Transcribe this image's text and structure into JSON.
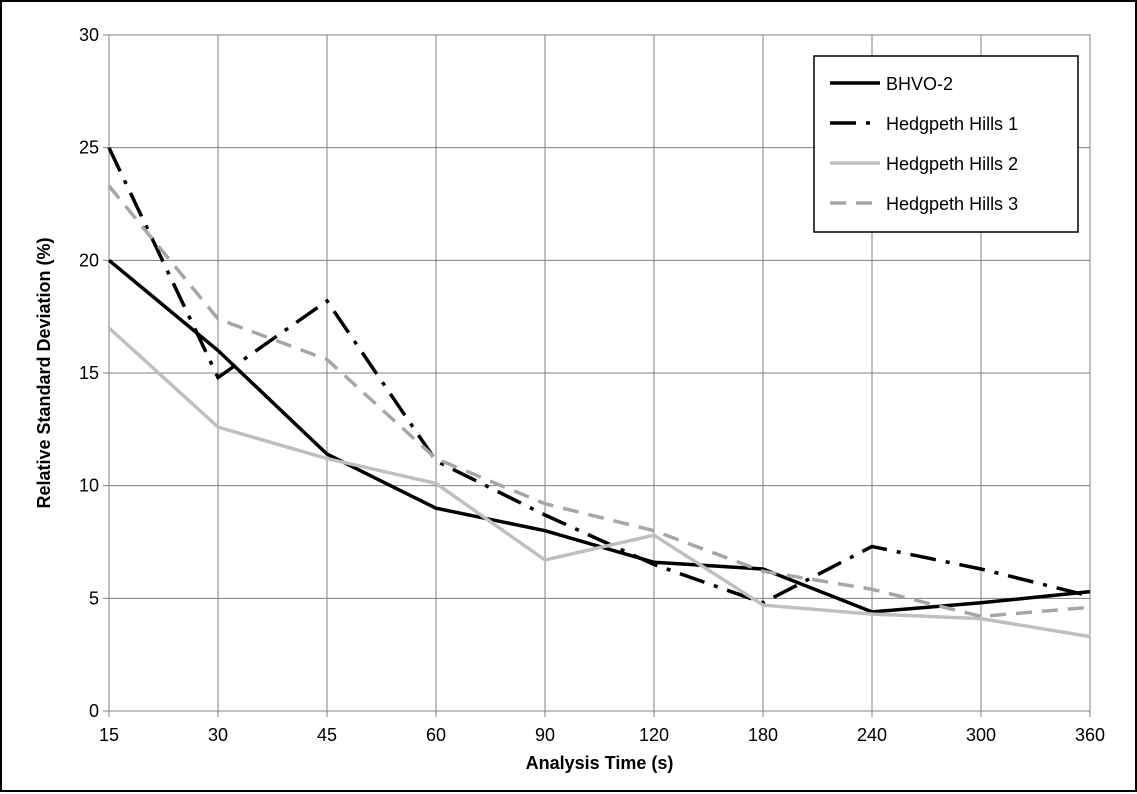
{
  "chart_data": {
    "type": "line",
    "title": "",
    "xlabel": "Analysis Time (s)",
    "ylabel": "Relative Standard Deviation (%)",
    "categories": [
      "15",
      "30",
      "45",
      "60",
      "90",
      "120",
      "180",
      "240",
      "300",
      "360"
    ],
    "ylim": [
      0,
      30
    ],
    "yticks": [
      "0",
      "5",
      "10",
      "15",
      "20",
      "25",
      "30"
    ],
    "grid": true,
    "legend_position": "top-right",
    "series": [
      {
        "name": "BHVO-2",
        "color": "#000000",
        "style": "solid",
        "values": [
          20.0,
          16.0,
          11.4,
          9.0,
          8.0,
          6.6,
          6.3,
          4.4,
          4.8,
          5.3
        ]
      },
      {
        "name": "Hedgpeth Hills 1",
        "color": "#000000",
        "style": "dashdot",
        "values": [
          25.0,
          14.8,
          18.2,
          11.1,
          8.7,
          6.5,
          4.8,
          7.3,
          6.3,
          5.1
        ]
      },
      {
        "name": "Hedgpeth Hills 2",
        "color": "#bfbfbf",
        "style": "solid",
        "values": [
          17.0,
          12.6,
          11.2,
          10.1,
          6.7,
          7.8,
          4.7,
          4.3,
          4.1,
          3.3
        ]
      },
      {
        "name": "Hedgpeth Hills 3",
        "color": "#a6a6a6",
        "style": "dashed",
        "values": [
          23.3,
          17.4,
          15.6,
          11.2,
          9.2,
          8.0,
          6.2,
          5.4,
          4.2,
          4.6
        ]
      }
    ]
  }
}
